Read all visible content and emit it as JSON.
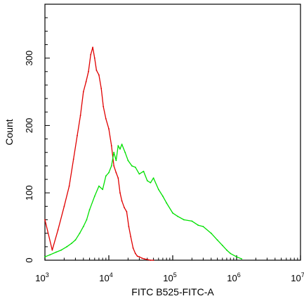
{
  "chart_data": {
    "type": "line",
    "title": "",
    "xlabel": "FITC B525-FITC-A",
    "ylabel": "Count",
    "x_scale": "log",
    "xlim": [
      1000,
      10000000
    ],
    "ylim": [
      0,
      380
    ],
    "x_ticks": [
      {
        "value": 1000,
        "base": "10",
        "exp": "3"
      },
      {
        "value": 10000,
        "base": "10",
        "exp": "4"
      },
      {
        "value": 100000,
        "base": "10",
        "exp": "5"
      },
      {
        "value": 1000000,
        "base": "10",
        "exp": "6"
      },
      {
        "value": 10000000,
        "base": "10",
        "exp": "7"
      }
    ],
    "y_ticks": [
      {
        "value": 0,
        "label": "0"
      },
      {
        "value": 100,
        "label": "100"
      },
      {
        "value": 200,
        "label": "200"
      },
      {
        "value": 300,
        "label": "300"
      }
    ],
    "grid": false,
    "legend": "none",
    "series": [
      {
        "color": "#e00000",
        "x": [
          1000,
          1300,
          1600,
          2000,
          2400,
          2800,
          3200,
          3600,
          4000,
          4400,
          4800,
          5200,
          5600,
          6000,
          6400,
          7000,
          7600,
          8200,
          9000,
          10000,
          11000,
          12000,
          13000,
          14000,
          15000,
          16000,
          17500,
          19000,
          20500,
          22000,
          24000,
          26000,
          28000,
          30000,
          33000,
          36000,
          40000,
          45000,
          50000
        ],
        "y": [
          60,
          15,
          45,
          80,
          110,
          150,
          185,
          215,
          250,
          265,
          280,
          305,
          316,
          300,
          282,
          275,
          255,
          228,
          210,
          195,
          170,
          140,
          130,
          122,
          100,
          88,
          78,
          72,
          50,
          35,
          18,
          10,
          6,
          5,
          3,
          2,
          1,
          0,
          0
        ]
      },
      {
        "color": "#00e000",
        "x": [
          1000,
          1200,
          1500,
          1800,
          2200,
          2600,
          3000,
          3500,
          4000,
          4500,
          5000,
          6000,
          7000,
          8000,
          9000,
          10000,
          11000,
          12000,
          13000,
          14000,
          15000,
          16000,
          18000,
          20000,
          23000,
          26000,
          30000,
          35000,
          40000,
          45000,
          50000,
          60000,
          70000,
          80000,
          100000,
          120000,
          150000,
          200000,
          250000,
          300000,
          400000,
          500000,
          600000,
          700000,
          800000,
          1000000,
          1200000
        ],
        "y": [
          5,
          8,
          12,
          15,
          20,
          25,
          30,
          40,
          50,
          60,
          75,
          95,
          110,
          105,
          125,
          130,
          140,
          160,
          148,
          170,
          165,
          172,
          160,
          148,
          140,
          138,
          128,
          132,
          118,
          115,
          122,
          105,
          95,
          85,
          70,
          65,
          60,
          58,
          52,
          50,
          40,
          30,
          22,
          15,
          10,
          5,
          2
        ]
      }
    ]
  }
}
